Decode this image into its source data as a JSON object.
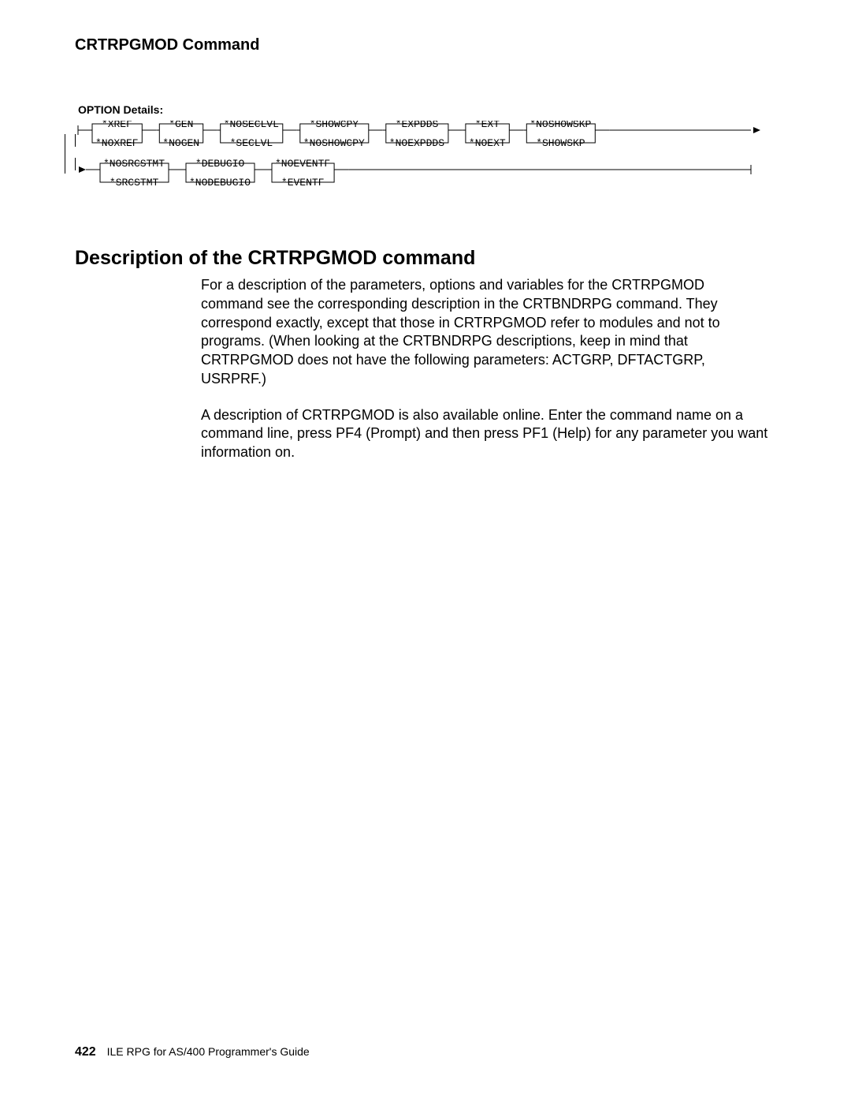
{
  "header": {
    "running_head": "CRTRPGMOD Command"
  },
  "syntax": {
    "label": "OPTION Details:",
    "row1": [
      {
        "top": "*XREF",
        "bot": "*NOXREF"
      },
      {
        "top": "*GEN",
        "bot": "*NOGEN"
      },
      {
        "top": "*NOSECLVL",
        "bot": "*SECLVL"
      },
      {
        "top": "*SHOWCPY",
        "bot": "*NOSHOWCPY"
      },
      {
        "top": "*EXPDDS",
        "bot": "*NOEXPDDS"
      },
      {
        "top": "*EXT",
        "bot": "*NOEXT"
      },
      {
        "top": "*NOSHOWSKP",
        "bot": "*SHOWSKP"
      }
    ],
    "row2": [
      {
        "top": "*NOSRCSTMT",
        "bot": "*SRCSTMT"
      },
      {
        "top": "*DEBUGIO",
        "bot": "*NODEBUGIO"
      },
      {
        "top": "*NOEVENTF",
        "bot": "*EVENTF"
      }
    ]
  },
  "section": {
    "title": "Description of the CRTRPGMOD command",
    "para1": "For a description of the parameters, options and variables for the CRTRPGMOD command see the corresponding description in the CRTBNDRPG command.  They correspond exactly, except that those in CRTRPGMOD refer to modules and not to programs. (When looking at the CRTBNDRPG descriptions, keep in mind that CRTRPGMOD does not have the following parameters: ACTGRP, DFTACTGRP, USRPRF.)",
    "para2": "A description of CRTRPGMOD is also available online. Enter the command name on a command line, press PF4 (Prompt) and then press PF1 (Help) for any parameter you want information on."
  },
  "footer": {
    "page_number": "422",
    "book_title": "ILE RPG for AS/400 Programmer's Guide"
  },
  "styling": {
    "text_color": "#000000",
    "background_color": "#ffffff",
    "rule_color": "#000000",
    "mono_font": "Courier New"
  }
}
